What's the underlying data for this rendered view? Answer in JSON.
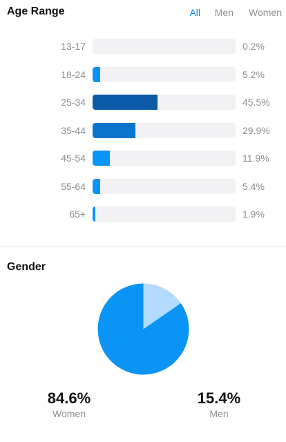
{
  "age_section": {
    "title": "Age Range",
    "filters": {
      "all": "All",
      "men": "Men",
      "women": "Women"
    },
    "selected_filter": "All"
  },
  "gender_section": {
    "title": "Gender",
    "women_value": "84.6%",
    "women_label": "Women",
    "men_value": "15.4%",
    "men_label": "Men"
  },
  "colors": {
    "accent": "#0a84ff",
    "bar_dark": "#0a5aa8",
    "bar_mid": "#0a74cc",
    "bar_light": "#0a94f5",
    "pie_women": "#0a94f5",
    "pie_men": "#b3dbff",
    "track": "#f2f2f4"
  },
  "chart_data": [
    {
      "type": "bar",
      "orientation": "horizontal",
      "title": "Age Range",
      "categories": [
        "13-17",
        "18-24",
        "25-34",
        "35-44",
        "45-54",
        "55-64",
        "65+"
      ],
      "values": [
        0.2,
        5.2,
        45.5,
        29.9,
        11.9,
        5.4,
        1.9
      ],
      "value_labels": [
        "0.2%",
        "5.2%",
        "45.5%",
        "29.9%",
        "11.9%",
        "5.4%",
        "1.9%"
      ],
      "xlim": [
        0,
        100
      ]
    },
    {
      "type": "pie",
      "title": "Gender",
      "categories": [
        "Women",
        "Men"
      ],
      "values": [
        84.6,
        15.4
      ]
    }
  ]
}
